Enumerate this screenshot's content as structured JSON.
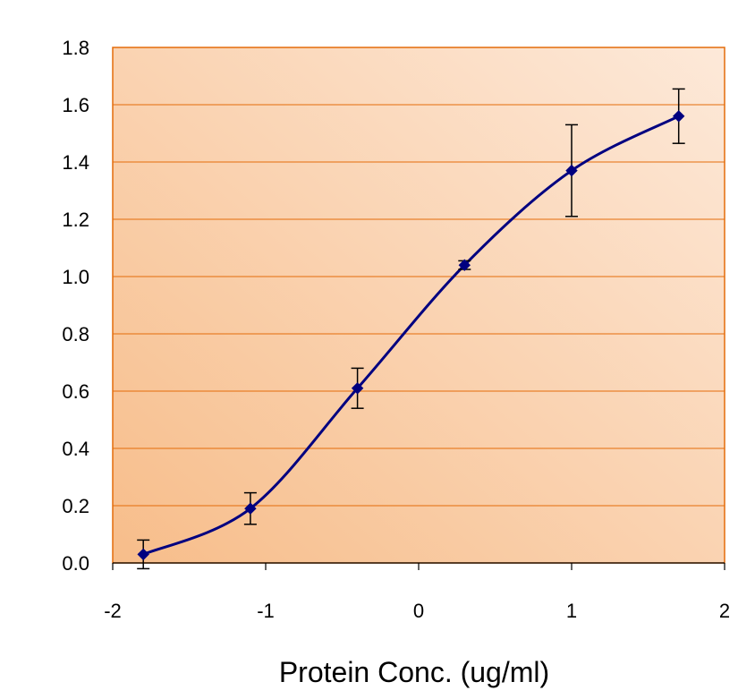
{
  "chart_data": {
    "type": "line",
    "title": "",
    "xlabel": "Protein Conc. (ug/ml)",
    "ylabel": "",
    "xlim": [
      -2,
      2
    ],
    "ylim": [
      0,
      1.8
    ],
    "x_ticks": [
      "-2",
      "-1",
      "0",
      "1",
      "2"
    ],
    "y_ticks": [
      "0.0",
      "0.2",
      "0.4",
      "0.6",
      "0.8",
      "1.0",
      "1.2",
      "1.4",
      "1.6",
      "1.8"
    ],
    "grid": true,
    "legend": "none",
    "series": [
      {
        "x": [
          -1.8,
          -1.1,
          -0.4,
          0.3,
          1.0,
          1.7
        ],
        "y": [
          0.03,
          0.19,
          0.61,
          1.04,
          1.37,
          1.56
        ],
        "error": [
          0.05,
          0.055,
          0.07,
          0.015,
          0.16,
          0.095
        ]
      }
    ],
    "colors": {
      "line": "#000080",
      "gridline": "#e46c0a",
      "plot_bg_dark": "#f7bd8a",
      "plot_bg_light": "#fde9d9",
      "error_bar": "#000000"
    }
  }
}
